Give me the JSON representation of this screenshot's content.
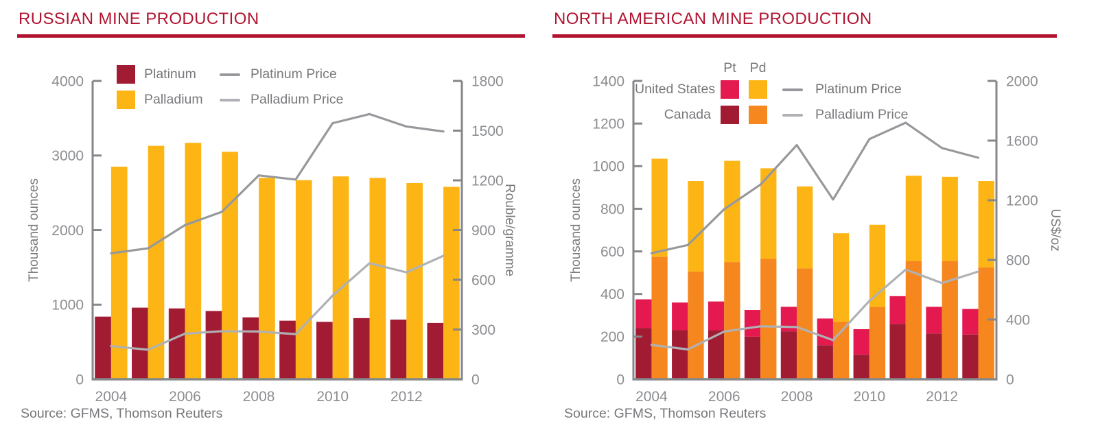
{
  "accent_color": "#B11430",
  "chart_data": [
    {
      "type": "bar+line",
      "title": "RUSSIAN MINE PRODUCTION",
      "source": "Source: GFMS, Thomson Reuters",
      "years": [
        2004,
        2005,
        2006,
        2007,
        2008,
        2009,
        2010,
        2011,
        2012,
        2013
      ],
      "x_labels": [
        "2004",
        "2006",
        "2008",
        "2010",
        "2012"
      ],
      "left_axis": {
        "label": "Thousand ounces",
        "min": 0,
        "max": 4000,
        "step": 1000
      },
      "right_axis": {
        "label": "Rouble/gramme",
        "min": 0,
        "max": 1800,
        "step": 300
      },
      "bars": [
        {
          "segments": [
            {
              "name": "Platinum",
              "color": "#A11C33",
              "values": [
                840,
                960,
                950,
                915,
                830,
                785,
                770,
                820,
                800,
                755
              ]
            }
          ]
        },
        {
          "segments": [
            {
              "name": "Palladium",
              "color": "#FCB515",
              "values": [
                2850,
                3130,
                3170,
                3050,
                2700,
                2670,
                2720,
                2700,
                2630,
                2580
              ]
            }
          ]
        }
      ],
      "lines": [
        {
          "name": "Platinum Price",
          "color": "#96989B",
          "values": [
            760,
            790,
            930,
            1010,
            1230,
            1205,
            1545,
            1600,
            1525,
            1495
          ]
        },
        {
          "name": "Palladium Price",
          "color": "#AFB1B4",
          "values": [
            200,
            178,
            275,
            290,
            288,
            272,
            505,
            700,
            645,
            745
          ]
        }
      ]
    },
    {
      "type": "stacked-bar+line",
      "title": "NORTH AMERICAN MINE PRODUCTION",
      "source": "Source: GFMS, Thomson Reuters",
      "years": [
        2004,
        2005,
        2006,
        2007,
        2008,
        2009,
        2010,
        2011,
        2012,
        2013
      ],
      "x_labels": [
        "2004",
        "2006",
        "2008",
        "2010",
        "2012"
      ],
      "left_axis": {
        "label": "Thousand ounces",
        "min": 0,
        "max": 1400,
        "step": 200
      },
      "right_axis": {
        "label": "US$/oz",
        "min": 0,
        "max": 2000,
        "step": 400
      },
      "legend": {
        "pt_header": "Pt",
        "pd_header": "Pd",
        "rows": [
          {
            "label": "United States"
          },
          {
            "label": "Canada"
          }
        ]
      },
      "bars": [
        {
          "segments": [
            {
              "name": "Canada Pt",
              "color": "#A11C33",
              "values": [
                240,
                230,
                230,
                200,
                225,
                160,
                115,
                260,
                215,
                210
              ]
            },
            {
              "name": "United States Pt",
              "color": "#E31950",
              "values": [
                135,
                130,
                135,
                125,
                115,
                125,
                120,
                130,
                125,
                120
              ]
            }
          ]
        },
        {
          "segments": [
            {
              "name": "Canada Pd",
              "color": "#F5871E",
              "values": [
                575,
                505,
                550,
                565,
                520,
                270,
                340,
                555,
                555,
                525
              ]
            },
            {
              "name": "United States Pd",
              "color": "#FCB515",
              "values": [
                460,
                425,
                475,
                425,
                385,
                415,
                385,
                400,
                395,
                405
              ]
            }
          ]
        }
      ],
      "lines": [
        {
          "name": "Platinum Price",
          "color": "#96989B",
          "values": [
            845,
            900,
            1140,
            1305,
            1570,
            1205,
            1610,
            1720,
            1550,
            1485
          ]
        },
        {
          "name": "Palladium Price",
          "color": "#AFB1B4",
          "values": [
            230,
            200,
            320,
            355,
            350,
            262,
            525,
            735,
            645,
            722
          ]
        }
      ]
    }
  ]
}
